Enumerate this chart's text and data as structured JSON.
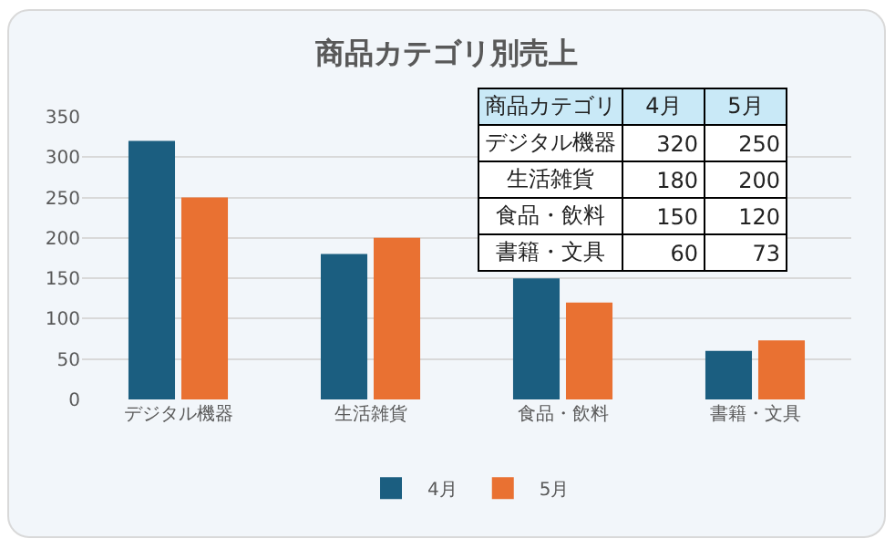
{
  "chart_data": {
    "type": "bar",
    "title": "商品カテゴリ別売上",
    "categories": [
      "デジタル機器",
      "生活雑貨",
      "食品・飲料",
      "書籍・文具"
    ],
    "series": [
      {
        "name": "4月",
        "color": "#1b5e80",
        "values": [
          320,
          180,
          150,
          60
        ]
      },
      {
        "name": "5月",
        "color": "#e97132",
        "values": [
          250,
          200,
          120,
          73
        ]
      }
    ],
    "ylim": [
      0,
      350
    ],
    "yticks": [
      0,
      50,
      100,
      150,
      200,
      250,
      300,
      350
    ],
    "grid": "y",
    "legend": "bottom",
    "annotations": [
      "商品カテゴリ",
      "320",
      "250",
      "180",
      "200",
      "150",
      "120",
      "60",
      "73"
    ]
  }
}
